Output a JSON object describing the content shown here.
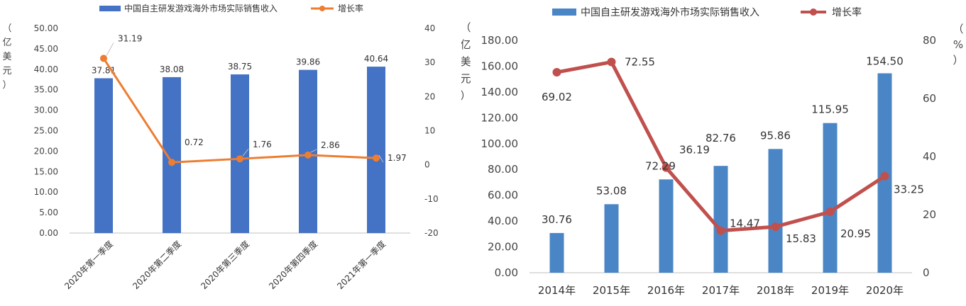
{
  "chart_data": [
    {
      "type": "bar",
      "legend": {
        "bar_label": "中国自主研发游戏海外市场实际销售收入",
        "line_label": "增长率",
        "placement": "top"
      },
      "ylabel": "（亿美元）",
      "categories": [
        "2020年第一季度",
        "2020年第二季度",
        "2020年第三季度",
        "2020年第四季度",
        "2021年第一季度"
      ],
      "series": [
        {
          "name": "中国自主研发游戏海外市场实际销售收入",
          "type": "bar",
          "axis": "left",
          "values": [
            37.81,
            38.08,
            38.75,
            39.86,
            40.64
          ]
        },
        {
          "name": "增长率",
          "type": "line",
          "axis": "right",
          "values": [
            31.19,
            0.72,
            1.76,
            2.86,
            1.97
          ]
        }
      ],
      "bar_labels": [
        "37.81",
        "38.08",
        "38.75",
        "39.86",
        "40.64"
      ],
      "line_labels": [
        "31.19",
        "0.72",
        "1.76",
        "2.86",
        "1.97"
      ],
      "y_left": {
        "range": [
          0,
          50
        ],
        "ticks": [
          "0.00",
          "5.00",
          "10.00",
          "15.00",
          "20.00",
          "25.00",
          "30.00",
          "35.00",
          "40.00",
          "45.00",
          "50.00"
        ]
      },
      "y_right": {
        "range": [
          -20,
          40
        ],
        "ticks": [
          "-20",
          "-10",
          "0",
          "10",
          "20",
          "30",
          "40"
        ]
      },
      "grid": false,
      "colors": {
        "bar": "#4472c4",
        "line": "#ed7d31"
      }
    },
    {
      "type": "bar",
      "legend": {
        "bar_label": "中国自主研发游戏海外市场实际销售收入",
        "line_label": "增长率",
        "placement": "top"
      },
      "ylabel": "（亿美元）",
      "y2label": "（%）",
      "categories": [
        "2014年",
        "2015年",
        "2016年",
        "2017年",
        "2018年",
        "2019年",
        "2020年"
      ],
      "series": [
        {
          "name": "中国自主研发游戏海外市场实际销售收入",
          "type": "bar",
          "axis": "left",
          "values": [
            30.76,
            53.08,
            72.29,
            82.76,
            95.86,
            115.95,
            154.5
          ]
        },
        {
          "name": "增长率",
          "type": "line",
          "axis": "right",
          "values": [
            69.02,
            72.55,
            36.19,
            14.47,
            15.83,
            20.95,
            33.25
          ]
        }
      ],
      "bar_labels": [
        "30.76",
        "53.08",
        "72.29",
        "82.76",
        "95.86",
        "115.95",
        "154.50"
      ],
      "line_labels": [
        "69.02",
        "72.55",
        "36.19",
        "14.47",
        "15.83",
        "20.95",
        "33.25"
      ],
      "y_left": {
        "range": [
          0,
          180
        ],
        "ticks": [
          "0.00",
          "20.00",
          "40.00",
          "60.00",
          "80.00",
          "100.00",
          "120.00",
          "140.00",
          "160.00",
          "180.00"
        ]
      },
      "y_right": {
        "range": [
          0,
          80
        ],
        "ticks": [
          "0",
          "20",
          "40",
          "60",
          "80"
        ]
      },
      "grid": false,
      "colors": {
        "bar": "#4a86c6",
        "line": "#c0504d"
      }
    }
  ]
}
